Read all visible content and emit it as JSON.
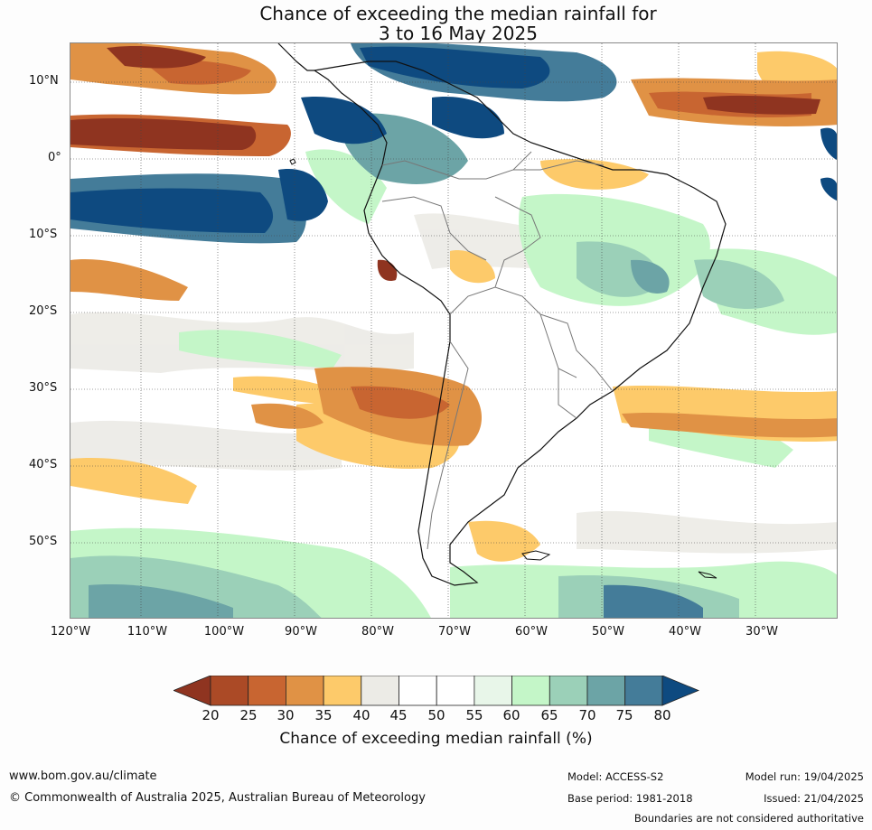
{
  "title": {
    "line1": "Chance of exceeding the median rainfall for",
    "line2": "3 to 16 May 2025"
  },
  "map": {
    "region": "South America",
    "lat_labels": [
      "10°N",
      "0°",
      "10°S",
      "20°S",
      "30°S",
      "40°S",
      "50°S"
    ],
    "lon_labels": [
      "120°W",
      "110°W",
      "100°W",
      "90°W",
      "80°W",
      "70°W",
      "60°W",
      "50°W",
      "40°W",
      "30°W"
    ],
    "lat_values": [
      10,
      0,
      -10,
      -20,
      -30,
      -40,
      -50
    ],
    "lon_values": [
      -120,
      -110,
      -100,
      -90,
      -80,
      -70,
      -60,
      -50,
      -40,
      -30
    ],
    "extent": {
      "west": -120,
      "east": -20,
      "north": 15,
      "south": -60
    }
  },
  "colorbar": {
    "title": "Chance of exceeding median rainfall (%)",
    "ticks": [
      "20",
      "25",
      "30",
      "35",
      "40",
      "45",
      "50",
      "55",
      "60",
      "65",
      "70",
      "75",
      "80"
    ],
    "colors": {
      "below_20": "#8f3420",
      "20-25": "#ab4a26",
      "25-30": "#c86531",
      "30-35": "#e09245",
      "35-40": "#fdca6a",
      "40-45": "#ecebe6",
      "45-50": "#ffffff",
      "50-55": "#ffffff",
      "55-60": "#e8f6e9",
      "60-65": "#c4f6c8",
      "65-70": "#9bd0b8",
      "70-75": "#6ca4a6",
      "75-80": "#447c99",
      "above_80": "#0e4a80"
    }
  },
  "footer": {
    "website": "www.bom.gov.au/climate",
    "copyright": "© Commonwealth of Australia 2025, Australian Bureau of Meteorology",
    "model": "Model: ACCESS-S2",
    "base_period": "Base period: 1981-2018",
    "model_run": "Model run: 19/04/2025",
    "issued": "Issued: 21/04/2025",
    "boundaries_note": "Boundaries are not considered authoritative"
  }
}
